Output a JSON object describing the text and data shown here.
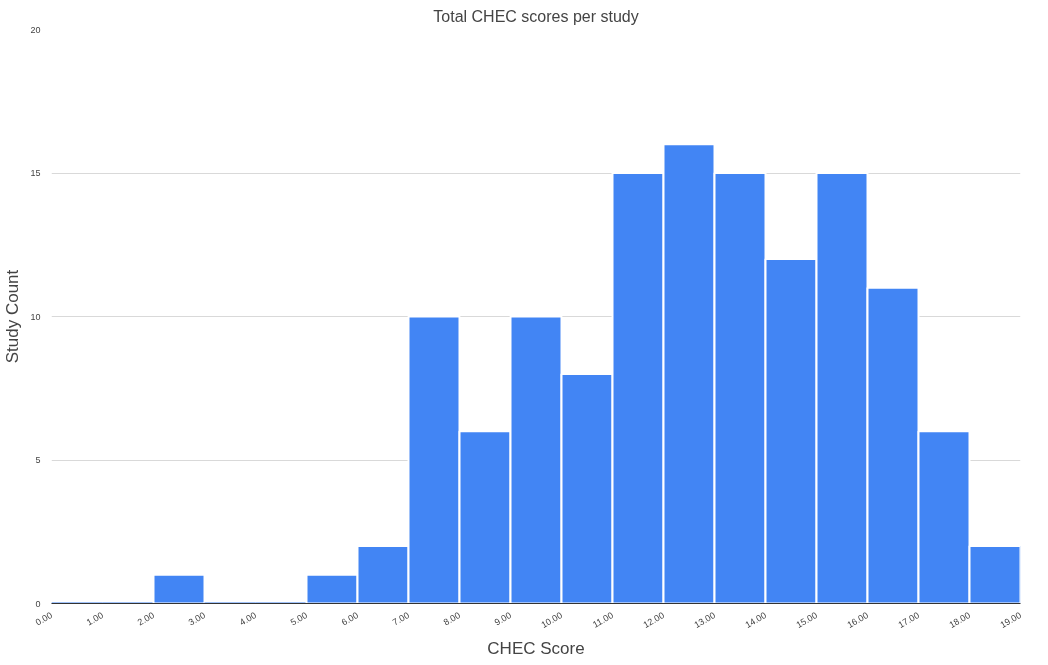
{
  "chart_data": {
    "type": "histogram",
    "title": "Total CHEC scores per study",
    "xlabel": "CHEC Score",
    "ylabel": "Study Count",
    "bins": [
      0,
      1,
      2,
      3,
      4,
      5,
      6,
      7,
      8,
      9,
      10,
      11,
      12,
      13,
      14,
      15,
      16,
      17,
      18,
      19
    ],
    "values": [
      0,
      0,
      1,
      0,
      0,
      1,
      2,
      10,
      6,
      10,
      8,
      15,
      16,
      15,
      12,
      15,
      11,
      6,
      2
    ],
    "color": "#4285f4",
    "xlim": [
      0,
      19
    ],
    "ylim": [
      0,
      20
    ],
    "xticks": [
      {
        "value": 0,
        "label": "0.00"
      },
      {
        "value": 1,
        "label": "1.00"
      },
      {
        "value": 2,
        "label": "2.00"
      },
      {
        "value": 3,
        "label": "3.00"
      },
      {
        "value": 4,
        "label": "4.00"
      },
      {
        "value": 5,
        "label": "5.00"
      },
      {
        "value": 6,
        "label": "6.00"
      },
      {
        "value": 7,
        "label": "7.00"
      },
      {
        "value": 8,
        "label": "8.00"
      },
      {
        "value": 9,
        "label": "9.00"
      },
      {
        "value": 10,
        "label": "10.00"
      },
      {
        "value": 11,
        "label": "11.00"
      },
      {
        "value": 12,
        "label": "12.00"
      },
      {
        "value": 13,
        "label": "13.00"
      },
      {
        "value": 14,
        "label": "14.00"
      },
      {
        "value": 15,
        "label": "15.00"
      },
      {
        "value": 16,
        "label": "16.00"
      },
      {
        "value": 17,
        "label": "17.00"
      },
      {
        "value": 18,
        "label": "18.00"
      },
      {
        "value": 19,
        "label": "19.00"
      }
    ],
    "yticks": [
      0,
      5,
      10,
      15,
      20
    ],
    "grid": "y"
  }
}
